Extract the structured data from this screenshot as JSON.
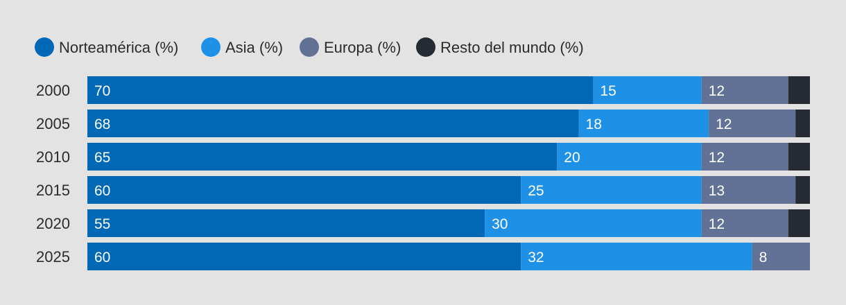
{
  "chart_data": {
    "type": "bar",
    "orientation": "horizontal",
    "stacked": true,
    "categories": [
      "2000",
      "2005",
      "2010",
      "2015",
      "2020",
      "2025"
    ],
    "series": [
      {
        "name": "Norteamérica (%)",
        "color": "#0068b5",
        "values": [
          70,
          68,
          65,
          60,
          55,
          60
        ]
      },
      {
        "name": "Asia (%)",
        "color": "#1e91e6",
        "values": [
          15,
          18,
          20,
          25,
          30,
          32
        ]
      },
      {
        "name": "Europa (%)",
        "color": "#627296",
        "values": [
          12,
          12,
          12,
          13,
          12,
          8
        ]
      },
      {
        "name": "Resto del mundo (%)",
        "color": "#252a33",
        "values": [
          3,
          2,
          3,
          2,
          3,
          0
        ]
      }
    ],
    "labeled_series": [
      0,
      1,
      2
    ],
    "legend_position": "top-left",
    "xlim": [
      0,
      100
    ],
    "grid": false
  }
}
